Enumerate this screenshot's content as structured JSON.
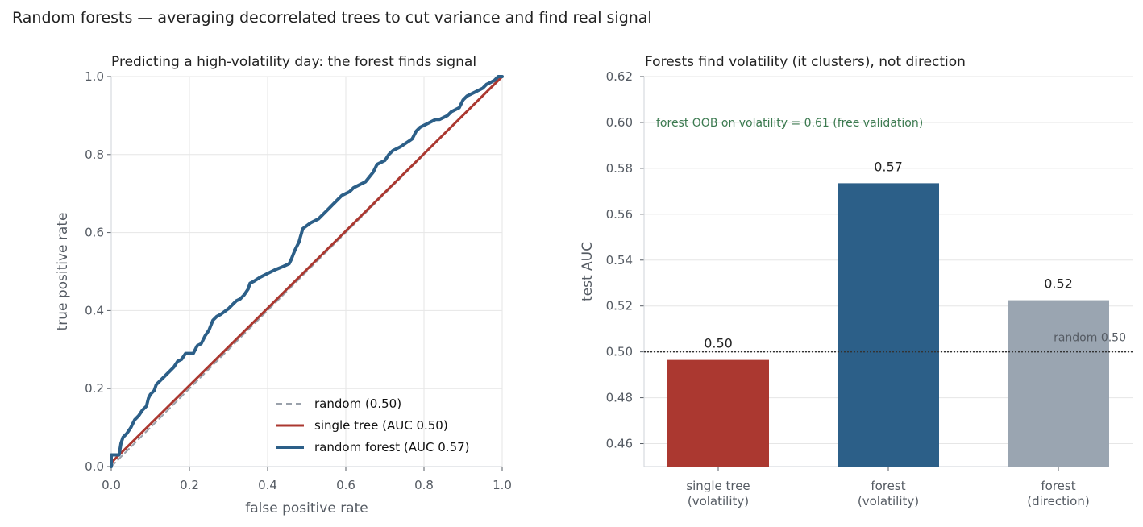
{
  "suptitle": "Random forests — averaging decorrelated trees to cut variance and find real signal",
  "colors": {
    "forest": "#2c5f88",
    "tree": "#ab3830",
    "random": "#9aa1ab",
    "direction_bar": "#9aa5b1",
    "annotation_green": "#3c7a50",
    "grid": "#e6e6e6",
    "axis_text": "#555b63",
    "title_text": "#222222"
  },
  "chart_data": [
    {
      "type": "line",
      "title": "Predicting a high-volatility day: the forest finds signal",
      "xlabel": "false positive rate",
      "ylabel": "true positive rate",
      "xlim": [
        0,
        1
      ],
      "ylim": [
        0,
        1
      ],
      "xticks": [
        "0.0",
        "0.2",
        "0.4",
        "0.6",
        "0.8",
        "1.0"
      ],
      "yticks": [
        "0.0",
        "0.2",
        "0.4",
        "0.6",
        "0.8",
        "1.0"
      ],
      "grid": true,
      "legend": "bottom-right",
      "series": [
        {
          "name": "random (0.50)",
          "style": "dashed",
          "points": [
            [
              0,
              0
            ],
            [
              1,
              1
            ]
          ]
        },
        {
          "name": "single tree (AUC 0.50)",
          "style": "solid",
          "points": [
            [
              0,
              0.01
            ],
            [
              0.5,
              0.505
            ],
            [
              1,
              1
            ]
          ]
        },
        {
          "name": "random forest (AUC 0.57)",
          "style": "solid",
          "points": [
            [
              0,
              0
            ],
            [
              0,
              0.03
            ],
            [
              0.02,
              0.03
            ],
            [
              0.025,
              0.06
            ],
            [
              0.03,
              0.075
            ],
            [
              0.04,
              0.085
            ],
            [
              0.05,
              0.1
            ],
            [
              0.06,
              0.12
            ],
            [
              0.07,
              0.13
            ],
            [
              0.08,
              0.145
            ],
            [
              0.09,
              0.155
            ],
            [
              0.095,
              0.175
            ],
            [
              0.1,
              0.185
            ],
            [
              0.11,
              0.195
            ],
            [
              0.115,
              0.21
            ],
            [
              0.12,
              0.215
            ],
            [
              0.13,
              0.225
            ],
            [
              0.14,
              0.235
            ],
            [
              0.15,
              0.245
            ],
            [
              0.16,
              0.255
            ],
            [
              0.17,
              0.27
            ],
            [
              0.18,
              0.275
            ],
            [
              0.19,
              0.29
            ],
            [
              0.21,
              0.29
            ],
            [
              0.22,
              0.31
            ],
            [
              0.23,
              0.315
            ],
            [
              0.24,
              0.335
            ],
            [
              0.25,
              0.35
            ],
            [
              0.26,
              0.375
            ],
            [
              0.27,
              0.385
            ],
            [
              0.28,
              0.39
            ],
            [
              0.3,
              0.405
            ],
            [
              0.31,
              0.415
            ],
            [
              0.32,
              0.425
            ],
            [
              0.33,
              0.43
            ],
            [
              0.34,
              0.44
            ],
            [
              0.35,
              0.455
            ],
            [
              0.355,
              0.47
            ],
            [
              0.365,
              0.475
            ],
            [
              0.38,
              0.485
            ],
            [
              0.4,
              0.495
            ],
            [
              0.42,
              0.505
            ],
            [
              0.44,
              0.513
            ],
            [
              0.455,
              0.52
            ],
            [
              0.46,
              0.53
            ],
            [
              0.47,
              0.555
            ],
            [
              0.48,
              0.575
            ],
            [
              0.49,
              0.61
            ],
            [
              0.51,
              0.625
            ],
            [
              0.53,
              0.635
            ],
            [
              0.55,
              0.655
            ],
            [
              0.57,
              0.675
            ],
            [
              0.59,
              0.695
            ],
            [
              0.61,
              0.705
            ],
            [
              0.62,
              0.715
            ],
            [
              0.64,
              0.725
            ],
            [
              0.65,
              0.73
            ],
            [
              0.67,
              0.755
            ],
            [
              0.68,
              0.775
            ],
            [
              0.7,
              0.785
            ],
            [
              0.71,
              0.8
            ],
            [
              0.72,
              0.81
            ],
            [
              0.74,
              0.82
            ],
            [
              0.77,
              0.84
            ],
            [
              0.78,
              0.86
            ],
            [
              0.79,
              0.87
            ],
            [
              0.81,
              0.88
            ],
            [
              0.83,
              0.89
            ],
            [
              0.84,
              0.89
            ],
            [
              0.86,
              0.9
            ],
            [
              0.87,
              0.91
            ],
            [
              0.89,
              0.92
            ],
            [
              0.9,
              0.94
            ],
            [
              0.91,
              0.95
            ],
            [
              0.93,
              0.96
            ],
            [
              0.95,
              0.97
            ],
            [
              0.96,
              0.98
            ],
            [
              0.97,
              0.985
            ],
            [
              0.98,
              0.99
            ],
            [
              0.99,
              1.0
            ],
            [
              1,
              1
            ]
          ]
        }
      ]
    },
    {
      "type": "bar",
      "title": "Forests find volatility (it clusters), not direction",
      "xlabel": "",
      "ylabel": "test AUC",
      "ylim": [
        0.45,
        0.62
      ],
      "yticks": [
        "0.46",
        "0.48",
        "0.50",
        "0.52",
        "0.54",
        "0.56",
        "0.58",
        "0.60",
        "0.62"
      ],
      "grid": true,
      "categories": [
        [
          "single tree",
          "(volatility)"
        ],
        [
          "forest",
          "(volatility)"
        ],
        [
          "forest",
          "(direction)"
        ]
      ],
      "values": [
        0.4965,
        0.5735,
        0.5225
      ],
      "value_labels": [
        "0.50",
        "0.57",
        "0.52"
      ],
      "reference_line": {
        "value": 0.5,
        "label": "random 0.50"
      },
      "annotation": {
        "text": "forest OOB on volatility = 0.61 (free validation)",
        "y": 0.6
      }
    }
  ]
}
